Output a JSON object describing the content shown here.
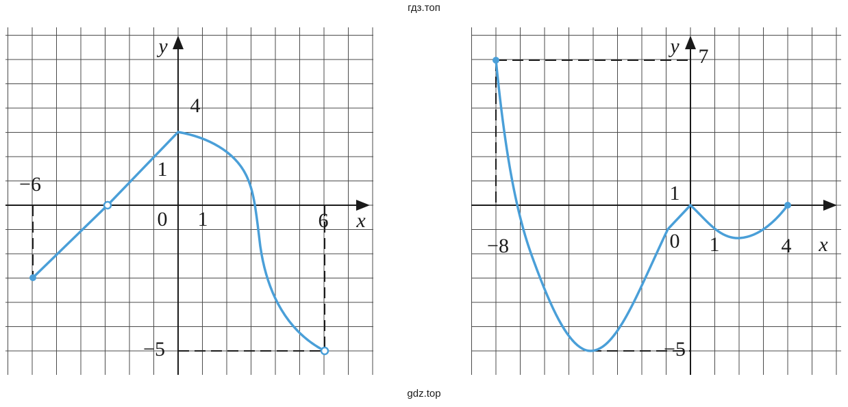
{
  "watermark_top": "гдз.топ",
  "watermark_bottom": "gdz.top",
  "graphs": [
    {
      "y_label": "y",
      "x_label": "x",
      "labels": [
        "4",
        "1",
        "0",
        "1",
        "−6",
        "6",
        "−5"
      ]
    },
    {
      "y_label": "y",
      "x_label": "x",
      "labels": [
        "7",
        "1",
        "0",
        "1",
        "−8",
        "4",
        "−5"
      ]
    }
  ]
}
